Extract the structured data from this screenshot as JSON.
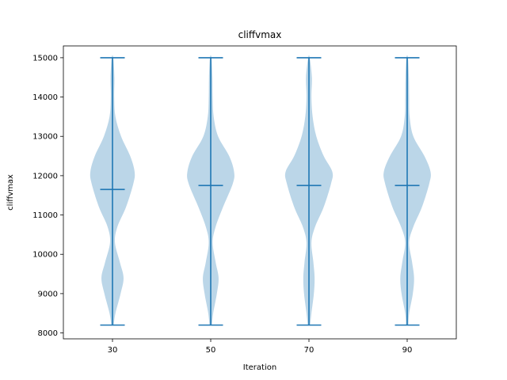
{
  "chart_data": {
    "type": "violin",
    "title": "cliffvmax",
    "xlabel": "Iteration",
    "ylabel": "cliffvmax",
    "categories": [
      "30",
      "50",
      "70",
      "90"
    ],
    "y_ticks": [
      "8000",
      "9000",
      "10000",
      "11000",
      "12000",
      "13000",
      "14000",
      "15000"
    ],
    "ylim": [
      7850,
      15300
    ],
    "grid": false,
    "colors": {
      "violin_fill": "#1f77b4",
      "violin_fill_opacity": 0.3,
      "lines": "#1f77b4"
    },
    "series": [
      {
        "category": "30",
        "min": 8200,
        "max": 15000,
        "mean": 11650,
        "density": [
          [
            8200,
            0.05
          ],
          [
            8500,
            0.12
          ],
          [
            9000,
            0.33
          ],
          [
            9400,
            0.45
          ],
          [
            9800,
            0.3
          ],
          [
            10300,
            0.1
          ],
          [
            10700,
            0.2
          ],
          [
            11200,
            0.55
          ],
          [
            11800,
            0.85
          ],
          [
            12100,
            0.9
          ],
          [
            12500,
            0.72
          ],
          [
            13000,
            0.35
          ],
          [
            13500,
            0.12
          ],
          [
            14000,
            0.07
          ],
          [
            14500,
            0.08
          ],
          [
            15000,
            0.03
          ]
        ]
      },
      {
        "category": "50",
        "min": 8200,
        "max": 15000,
        "mean": 11750,
        "density": [
          [
            8200,
            0.05
          ],
          [
            8500,
            0.1
          ],
          [
            9000,
            0.25
          ],
          [
            9400,
            0.32
          ],
          [
            9800,
            0.2
          ],
          [
            10300,
            0.08
          ],
          [
            10700,
            0.2
          ],
          [
            11200,
            0.5
          ],
          [
            11800,
            0.9
          ],
          [
            12100,
            0.95
          ],
          [
            12500,
            0.75
          ],
          [
            13000,
            0.3
          ],
          [
            13500,
            0.12
          ],
          [
            14000,
            0.08
          ],
          [
            14500,
            0.07
          ],
          [
            15000,
            0.03
          ]
        ]
      },
      {
        "category": "70",
        "min": 8200,
        "max": 15000,
        "mean": 11750,
        "density": [
          [
            8200,
            0.05
          ],
          [
            8500,
            0.1
          ],
          [
            9000,
            0.2
          ],
          [
            9400,
            0.23
          ],
          [
            9800,
            0.18
          ],
          [
            10300,
            0.1
          ],
          [
            10700,
            0.25
          ],
          [
            11200,
            0.6
          ],
          [
            11800,
            0.9
          ],
          [
            12100,
            0.95
          ],
          [
            12500,
            0.6
          ],
          [
            13000,
            0.3
          ],
          [
            13500,
            0.15
          ],
          [
            14000,
            0.1
          ],
          [
            14500,
            0.12
          ],
          [
            15000,
            0.03
          ]
        ]
      },
      {
        "category": "90",
        "min": 8200,
        "max": 15000,
        "mean": 11750,
        "density": [
          [
            8200,
            0.05
          ],
          [
            8500,
            0.08
          ],
          [
            9000,
            0.23
          ],
          [
            9400,
            0.28
          ],
          [
            9800,
            0.2
          ],
          [
            10300,
            0.08
          ],
          [
            10700,
            0.25
          ],
          [
            11200,
            0.6
          ],
          [
            11800,
            0.9
          ],
          [
            12100,
            0.95
          ],
          [
            12500,
            0.7
          ],
          [
            13000,
            0.25
          ],
          [
            13500,
            0.1
          ],
          [
            14000,
            0.08
          ],
          [
            14500,
            0.07
          ],
          [
            15000,
            0.03
          ]
        ]
      }
    ]
  }
}
